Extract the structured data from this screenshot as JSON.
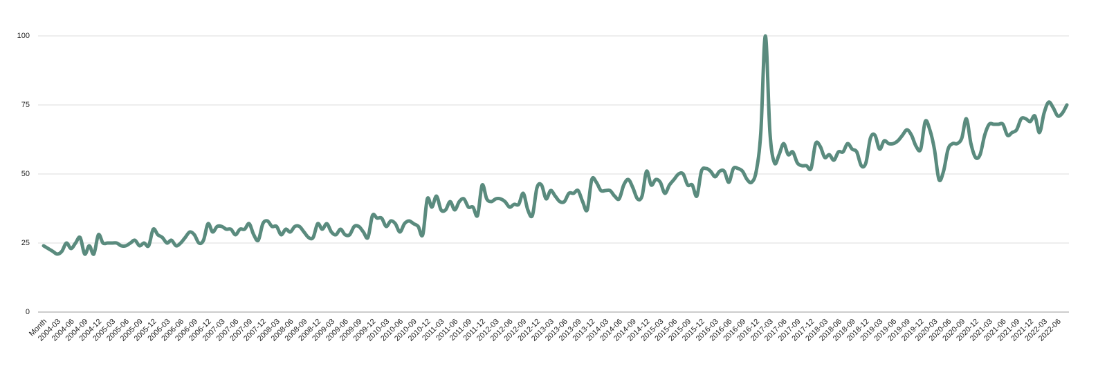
{
  "chart_data": {
    "type": "line",
    "categories": [
      "Month",
      null,
      null,
      "2004-03",
      null,
      null,
      "2004-06",
      null,
      null,
      "2004-09",
      null,
      null,
      "2004-12",
      null,
      null,
      "2005-03",
      null,
      null,
      "2005-06",
      null,
      null,
      "2005-09",
      null,
      null,
      "2005-12",
      null,
      null,
      "2006-03",
      null,
      null,
      "2006-06",
      null,
      null,
      "2006-09",
      null,
      null,
      "2006-12",
      null,
      null,
      "2007-03",
      null,
      null,
      "2007-06",
      null,
      null,
      "2007-09",
      null,
      null,
      "2007-12",
      null,
      null,
      "2008-03",
      null,
      null,
      "2008-06",
      null,
      null,
      "2008-09",
      null,
      null,
      "2008-12",
      null,
      null,
      "2009-03",
      null,
      null,
      "2009-06",
      null,
      null,
      "2009-09",
      null,
      null,
      "2009-12",
      null,
      null,
      "2010-03",
      null,
      null,
      "2010-06",
      null,
      null,
      "2010-09",
      null,
      null,
      "2010-12",
      null,
      null,
      "2011-03",
      null,
      null,
      "2011-06",
      null,
      null,
      "2011-09",
      null,
      null,
      "2011-12",
      null,
      null,
      "2012-03",
      null,
      null,
      "2012-06",
      null,
      null,
      "2012-09",
      null,
      null,
      "2012-12",
      null,
      null,
      "2013-03",
      null,
      null,
      "2013-06",
      null,
      null,
      "2013-09",
      null,
      null,
      "2013-12",
      null,
      null,
      "2014-03",
      null,
      null,
      "2014-06",
      null,
      null,
      "2014-09",
      null,
      null,
      "2014-12",
      null,
      null,
      "2015-03",
      null,
      null,
      "2015-06",
      null,
      null,
      "2015-09",
      null,
      null,
      "2015-12",
      null,
      null,
      "2016-03",
      null,
      null,
      "2016-06",
      null,
      null,
      "2016-09",
      null,
      null,
      "2016-12",
      null,
      null,
      "2017-03",
      null,
      null,
      "2017-06",
      null,
      null,
      "2017-09",
      null,
      null,
      "2017-12",
      null,
      null,
      "2018-03",
      null,
      null,
      "2018-06",
      null,
      null,
      "2018-09",
      null,
      null,
      "2018-12",
      null,
      null,
      "2019-03",
      null,
      null,
      "2019-06",
      null,
      null,
      "2019-09",
      null,
      null,
      "2019-12",
      null,
      null,
      "2020-03",
      null,
      null,
      "2020-06",
      null,
      null,
      "2020-09",
      null,
      null,
      "2020-12",
      null,
      null,
      "2021-03",
      null,
      null,
      "2021-06",
      null,
      null,
      "2021-09",
      null,
      null,
      "2021-12",
      null,
      null,
      "2022-03",
      null,
      null,
      "2022-06",
      null,
      null
    ],
    "values": [
      24,
      23,
      22,
      21,
      22,
      25,
      23,
      25,
      27,
      21,
      24,
      21,
      28,
      25,
      25,
      25,
      25,
      24,
      24,
      25,
      26,
      24,
      25,
      24,
      30,
      28,
      27,
      25,
      26,
      24,
      25,
      27,
      29,
      28,
      25,
      26,
      32,
      29,
      31,
      31,
      30,
      30,
      28,
      30,
      30,
      32,
      28,
      26,
      32,
      33,
      31,
      31,
      28,
      30,
      29,
      31,
      31,
      29,
      27,
      27,
      32,
      30,
      32,
      29,
      28,
      30,
      28,
      28,
      31,
      31,
      29,
      27,
      35,
      34,
      34,
      31,
      33,
      32,
      29,
      32,
      33,
      32,
      31,
      28,
      41,
      38,
      42,
      37,
      37,
      40,
      37,
      40,
      41,
      38,
      38,
      35,
      46,
      41,
      40,
      41,
      41,
      40,
      38,
      39,
      39,
      43,
      37,
      35,
      45,
      46,
      41,
      44,
      42,
      40,
      40,
      43,
      43,
      44,
      40,
      37,
      48,
      47,
      44,
      44,
      44,
      42,
      41,
      46,
      48,
      45,
      41,
      42,
      51,
      46,
      48,
      47,
      43,
      46,
      48,
      50,
      50,
      46,
      46,
      42,
      51,
      52,
      51,
      49,
      51,
      51,
      47,
      52,
      52,
      51,
      48,
      47,
      51,
      65,
      100,
      65,
      54,
      57,
      61,
      57,
      58,
      54,
      53,
      53,
      52,
      61,
      60,
      56,
      57,
      55,
      58,
      58,
      61,
      59,
      58,
      53,
      54,
      63,
      64,
      59,
      62,
      61,
      61,
      62,
      64,
      66,
      64,
      60,
      59,
      69,
      66,
      59,
      48,
      51,
      59,
      61,
      61,
      63,
      70,
      61,
      56,
      57,
      64,
      68,
      68,
      68,
      68,
      64,
      65,
      66,
      70,
      70,
      69,
      71,
      65,
      72,
      76,
      74,
      71,
      72,
      75
    ],
    "color": "#5a8b7e",
    "ylim": [
      0,
      100
    ],
    "yticks": [
      0,
      25,
      50,
      75,
      100
    ],
    "grid": true
  }
}
